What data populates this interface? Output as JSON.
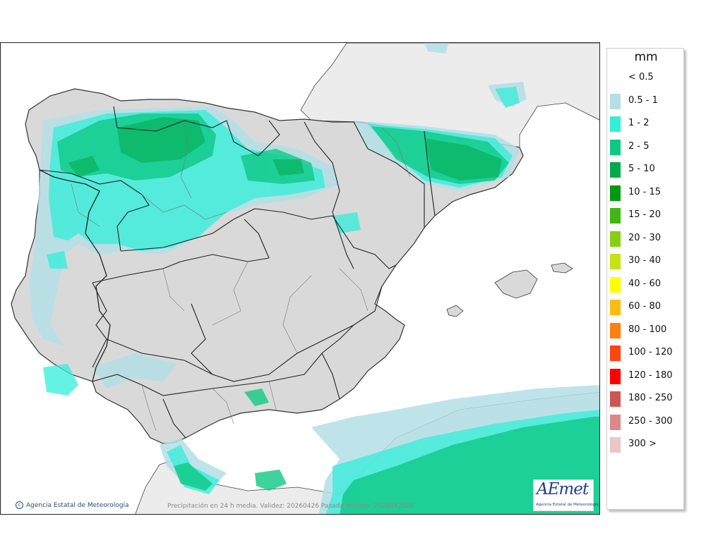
{
  "legend": {
    "title": "mm",
    "items": [
      {
        "label": "< 0.5",
        "color": "#ffffff"
      },
      {
        "label": "0.5 - 1",
        "color": "#b3dfe5"
      },
      {
        "label": "1 - 2",
        "color": "#33eed9"
      },
      {
        "label": "2 - 5",
        "color": "#0ec986"
      },
      {
        "label": "5 - 10",
        "color": "#04a94c"
      },
      {
        "label": "10 - 15",
        "color": "#009910"
      },
      {
        "label": "15 - 20",
        "color": "#41b614"
      },
      {
        "label": "20 - 30",
        "color": "#86cf12"
      },
      {
        "label": "30 - 40",
        "color": "#c3e412"
      },
      {
        "label": "40 - 60",
        "color": "#ffff00"
      },
      {
        "label": "60 - 80",
        "color": "#ffbb0f"
      },
      {
        "label": "80 - 100",
        "color": "#ff7f0f"
      },
      {
        "label": "100 - 120",
        "color": "#ff4511"
      },
      {
        "label": "120 - 180",
        "color": "#ff0000"
      },
      {
        "label": "180 - 250",
        "color": "#cc5555"
      },
      {
        "label": "250 - 300",
        "color": "#dd8888"
      },
      {
        "label": "300 >",
        "color": "#ecc5c5"
      }
    ]
  },
  "credit": {
    "icon": "copyright-icon",
    "text": "Agencia Estatal de Meteorología"
  },
  "caption": "Precipitación en 24 h media. Validez: 20260426 Pasada modelo: 2026042500",
  "logo": {
    "name": "AEMET",
    "text": "AEmet",
    "subtitle": "Agencia Estatal de Meteorología"
  },
  "map": {
    "land_color": "#d9d9d9",
    "foreign_land_color": "#ececec",
    "sea_color": "#ffffff",
    "border_color": "#222222"
  }
}
